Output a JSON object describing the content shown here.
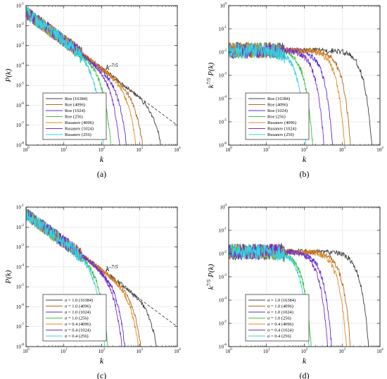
{
  "figure": {
    "panels": [
      "a",
      "b",
      "c",
      "d"
    ]
  },
  "chart_data": [
    {
      "panel": "a",
      "panel_label": "(a)",
      "type": "line",
      "xscale": "log",
      "yscale": "log",
      "xlim": [
        1,
        10000
      ],
      "ylim": [
        1e-08,
        0.1
      ],
      "xlabel": "k",
      "ylabel": "P(k)",
      "x_tick_labels": [
        "10^0",
        "10^1",
        "10^2",
        "10^3",
        "10^4"
      ],
      "y_tick_labels": [
        "10^-8",
        "10^-7",
        "10^-6",
        "10^-5",
        "10^-4",
        "10^-3",
        "10^-2",
        "10^-1"
      ],
      "grid": true,
      "legend_position": "bottom-left",
      "reference_line": {
        "label": "k^{-7/5}",
        "exponent": -1.4,
        "x": [
          1,
          10000
        ],
        "y": [
          0.04,
          1e-07
        ]
      },
      "series": [
        {
          "name": "Roe (16384)",
          "color": "#404040",
          "cutoff": 2000
        },
        {
          "name": "Roe (4096)",
          "color": "#b5651d",
          "cutoff": 560
        },
        {
          "name": "Roe (1024)",
          "color": "#5b2bd6",
          "cutoff": 190
        },
        {
          "name": "Roe (256)",
          "color": "#3fbf3f",
          "cutoff": 68
        },
        {
          "name": "Rusanov (4096)",
          "color": "#e08a1e",
          "cutoff": 360
        },
        {
          "name": "Rusanov (1024)",
          "color": "#7a2ec4",
          "cutoff": 120
        },
        {
          "name": "Rusanov (256)",
          "color": "#35d3e0",
          "cutoff": 42
        }
      ]
    },
    {
      "panel": "b",
      "panel_label": "(b)",
      "type": "line",
      "xscale": "log",
      "yscale": "log",
      "xlim": [
        1,
        10000
      ],
      "ylim": [
        1e-06,
        1
      ],
      "xlabel": "k",
      "ylabel": "k^{7/5} P(k)",
      "x_tick_labels": [
        "10^0",
        "10^1",
        "10^2",
        "10^3",
        "10^4"
      ],
      "y_tick_labels": [
        "10^-6",
        "10^-5",
        "10^-4",
        "10^-3",
        "10^-2",
        "10^-1",
        "10^0"
      ],
      "grid": true,
      "legend_position": "bottom-left",
      "series": [
        {
          "name": "Roe (16384)",
          "color": "#404040",
          "cutoff": 2200
        },
        {
          "name": "Roe (4096)",
          "color": "#b5651d",
          "cutoff": 600
        },
        {
          "name": "Roe (1024)",
          "color": "#5b2bd6",
          "cutoff": 200
        },
        {
          "name": "Roe (256)",
          "color": "#3fbf3f",
          "cutoff": 60
        },
        {
          "name": "Rusanov (4096)",
          "color": "#e08a1e",
          "cutoff": 420
        },
        {
          "name": "Rusanov (1024)",
          "color": "#7a2ec4",
          "cutoff": 120
        },
        {
          "name": "Rusanov (256)",
          "color": "#35d3e0",
          "cutoff": 40
        }
      ]
    },
    {
      "panel": "c",
      "panel_label": "(c)",
      "type": "line",
      "xscale": "log",
      "yscale": "log",
      "xlim": [
        1,
        10000
      ],
      "ylim": [
        1e-08,
        0.1
      ],
      "xlabel": "k",
      "ylabel": "P(k)",
      "x_tick_labels": [
        "10^0",
        "10^1",
        "10^2",
        "10^3",
        "10^4"
      ],
      "y_tick_labels": [
        "10^-8",
        "10^-7",
        "10^-6",
        "10^-5",
        "10^-4",
        "10^-3",
        "10^-2",
        "10^-1"
      ],
      "grid": true,
      "legend_position": "bottom-left",
      "reference_line": {
        "label": "k^{-7/5}",
        "exponent": -1.4,
        "x": [
          1,
          10000
        ],
        "y": [
          0.04,
          1e-07
        ]
      },
      "series": [
        {
          "name": "σ = 1.0 (16384)",
          "color": "#404040",
          "cutoff": 1500
        },
        {
          "name": "σ = 1.0 (4096)",
          "color": "#b5651d",
          "cutoff": 500
        },
        {
          "name": "σ = 1.0 (1024)",
          "color": "#5b2bd6",
          "cutoff": 170
        },
        {
          "name": "σ = 1.0 (256)",
          "color": "#3fbf3f",
          "cutoff": 55
        },
        {
          "name": "σ = 0.4 (4096)",
          "color": "#e08a1e",
          "cutoff": 420
        },
        {
          "name": "σ = 0.4 (1024)",
          "color": "#7a2ec4",
          "cutoff": 140
        },
        {
          "name": "σ = 0.4 (256)",
          "color": "#35d3e0",
          "cutoff": 45
        }
      ]
    },
    {
      "panel": "d",
      "panel_label": "(d)",
      "type": "line",
      "xscale": "log",
      "yscale": "log",
      "xlim": [
        1,
        10000
      ],
      "ylim": [
        1e-06,
        1
      ],
      "xlabel": "k",
      "ylabel": "k^{7/5} P(k)",
      "x_tick_labels": [
        "10^0",
        "10^1",
        "10^2",
        "10^3",
        "10^4"
      ],
      "y_tick_labels": [
        "10^-6",
        "10^-5",
        "10^-4",
        "10^-3",
        "10^-2",
        "10^-1",
        "10^0"
      ],
      "grid": true,
      "legend_position": "bottom-left",
      "series": [
        {
          "name": "σ = 1.0 (16384)",
          "color": "#404040",
          "cutoff": 1800
        },
        {
          "name": "σ = 1.0 (4096)",
          "color": "#b5651d",
          "cutoff": 600
        },
        {
          "name": "σ = 1.0 (1024)",
          "color": "#5b2bd6",
          "cutoff": 190
        },
        {
          "name": "σ = 1.0 (256)",
          "color": "#3fbf3f",
          "cutoff": 55
        },
        {
          "name": "σ = 0.4 (4096)",
          "color": "#e08a1e",
          "cutoff": 470
        },
        {
          "name": "σ = 0.4 (1024)",
          "color": "#7a2ec4",
          "cutoff": 150
        },
        {
          "name": "σ = 0.4 (256)",
          "color": "#35d3e0",
          "cutoff": 48
        }
      ]
    }
  ]
}
